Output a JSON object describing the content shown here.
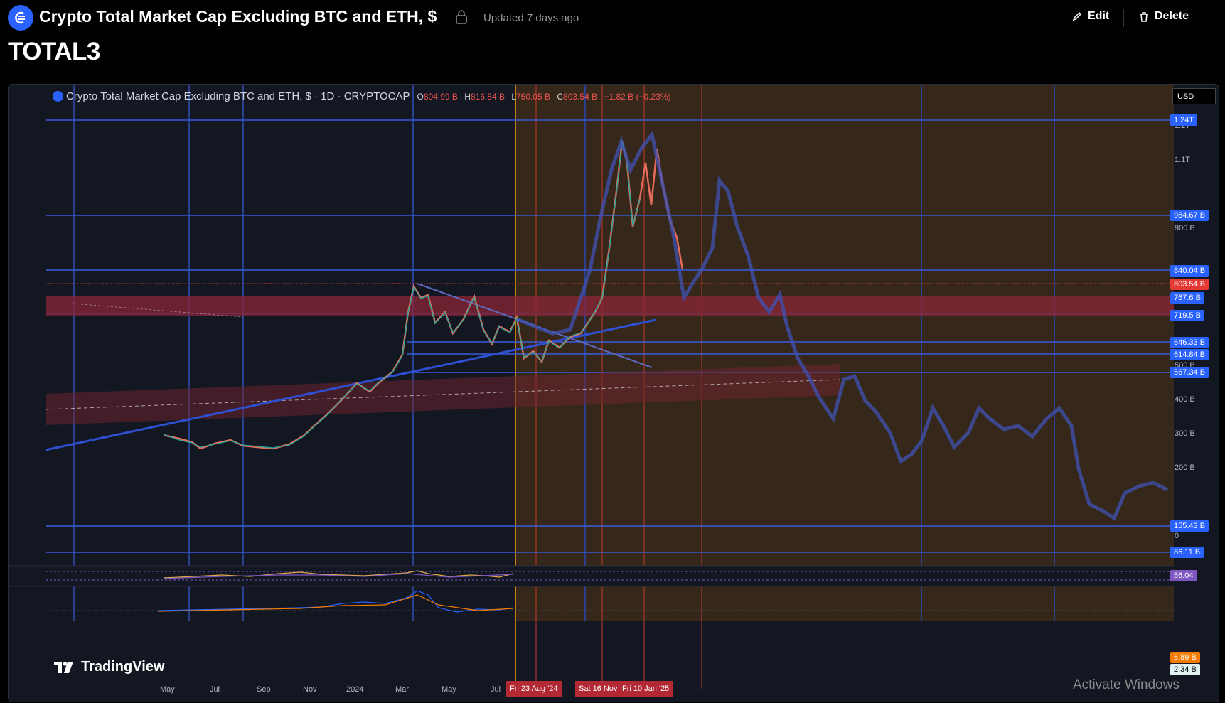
{
  "header": {
    "title": "Crypto Total Market Cap Excluding BTC and ETH, $",
    "updated": "Updated 7 days ago",
    "edit_label": "Edit",
    "delete_label": "Delete",
    "symbol": "TOTAL3"
  },
  "chart": {
    "legend_title": "Crypto Total Market Cap Excluding BTC and ETH, $ · 1D · CRYPTOCAP",
    "ohlc": {
      "o_label": "O",
      "o": "804.99 B",
      "h_label": "H",
      "h": "816.84 B",
      "l_label": "L",
      "l": "750.05 B",
      "c_label": "C",
      "c": "803.54 B",
      "change": "−1.82 B (−0.23%)"
    },
    "currency": "USD",
    "price_tags": [
      {
        "label": "1.24T",
        "color": "#2962ff"
      },
      {
        "label": "984.67 B",
        "color": "#2962ff"
      },
      {
        "label": "840.04 B",
        "color": "#2962ff"
      },
      {
        "label": "803.54 B",
        "color": "#e53935"
      },
      {
        "label": "767.6 B",
        "color": "#2962ff"
      },
      {
        "label": "719.5 B",
        "color": "#2962ff"
      },
      {
        "label": "646.33 B",
        "color": "#2962ff"
      },
      {
        "label": "614.84 B",
        "color": "#2962ff"
      },
      {
        "label": "567.34 B",
        "color": "#2962ff"
      },
      {
        "label": "155.43 B",
        "color": "#2962ff"
      },
      {
        "label": "86.11 B",
        "color": "#2962ff"
      }
    ],
    "price_axis": [
      "1.2T",
      "1.1T",
      "900 B",
      "500 B",
      "400 B",
      "300 B",
      "200 B",
      "0"
    ],
    "indicator_tags": [
      {
        "label": "56.04",
        "color": "#7e57c2"
      },
      {
        "label": "6.89 B",
        "color": "#f57c00"
      },
      {
        "label": "2.34 B",
        "color": "#e0f2f1",
        "text": "#000"
      }
    ],
    "time_axis": [
      "May",
      "Jul",
      "Sep",
      "Nov",
      "2024",
      "Mar",
      "May",
      "Jul"
    ],
    "time_tags": [
      "Fri 23 Aug '24",
      "Sat 16 Nov '24",
      "Fri 10 Jan '25"
    ],
    "brand": "TradingView"
  },
  "os": {
    "watermark": "Activate Windows"
  },
  "icons": [
    "app-logo-icon",
    "lock-icon",
    "pencil-icon",
    "trash-icon",
    "tradingview-logo-icon"
  ]
}
